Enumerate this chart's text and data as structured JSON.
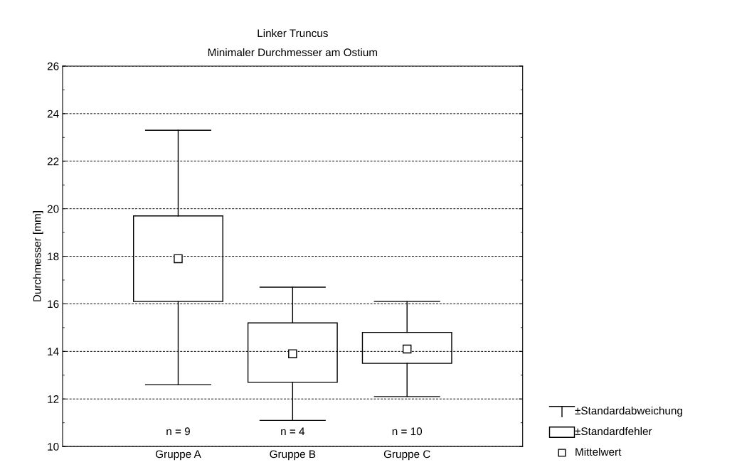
{
  "chart_data": {
    "type": "box",
    "title": "Linker Truncus",
    "subtitle": "Minimaler Durchmesser am Ostium",
    "ylabel": "Durchmesser [mm]",
    "categories": [
      "Gruppe A",
      "Gruppe B",
      "Gruppe C"
    ],
    "boxes": [
      {
        "low": 12.6,
        "q1": 16.1,
        "q3": 19.7,
        "high": 23.3,
        "mean": 17.9
      },
      {
        "low": 11.1,
        "q1": 12.7,
        "q3": 15.2,
        "high": 16.7,
        "mean": 13.9
      },
      {
        "low": 12.1,
        "q1": 13.5,
        "q3": 14.8,
        "high": 16.1,
        "mean": 14.1
      }
    ],
    "ylim": [
      10,
      26
    ],
    "yticks": [
      10,
      12,
      14,
      16,
      18,
      20,
      22,
      24,
      26
    ],
    "grid": "y",
    "marker": "square",
    "annotations": [
      "n = 9",
      "n = 4",
      "n = 10",
      "±Standardabweichung",
      "±Standardfehler",
      "Mittelwert"
    ]
  }
}
